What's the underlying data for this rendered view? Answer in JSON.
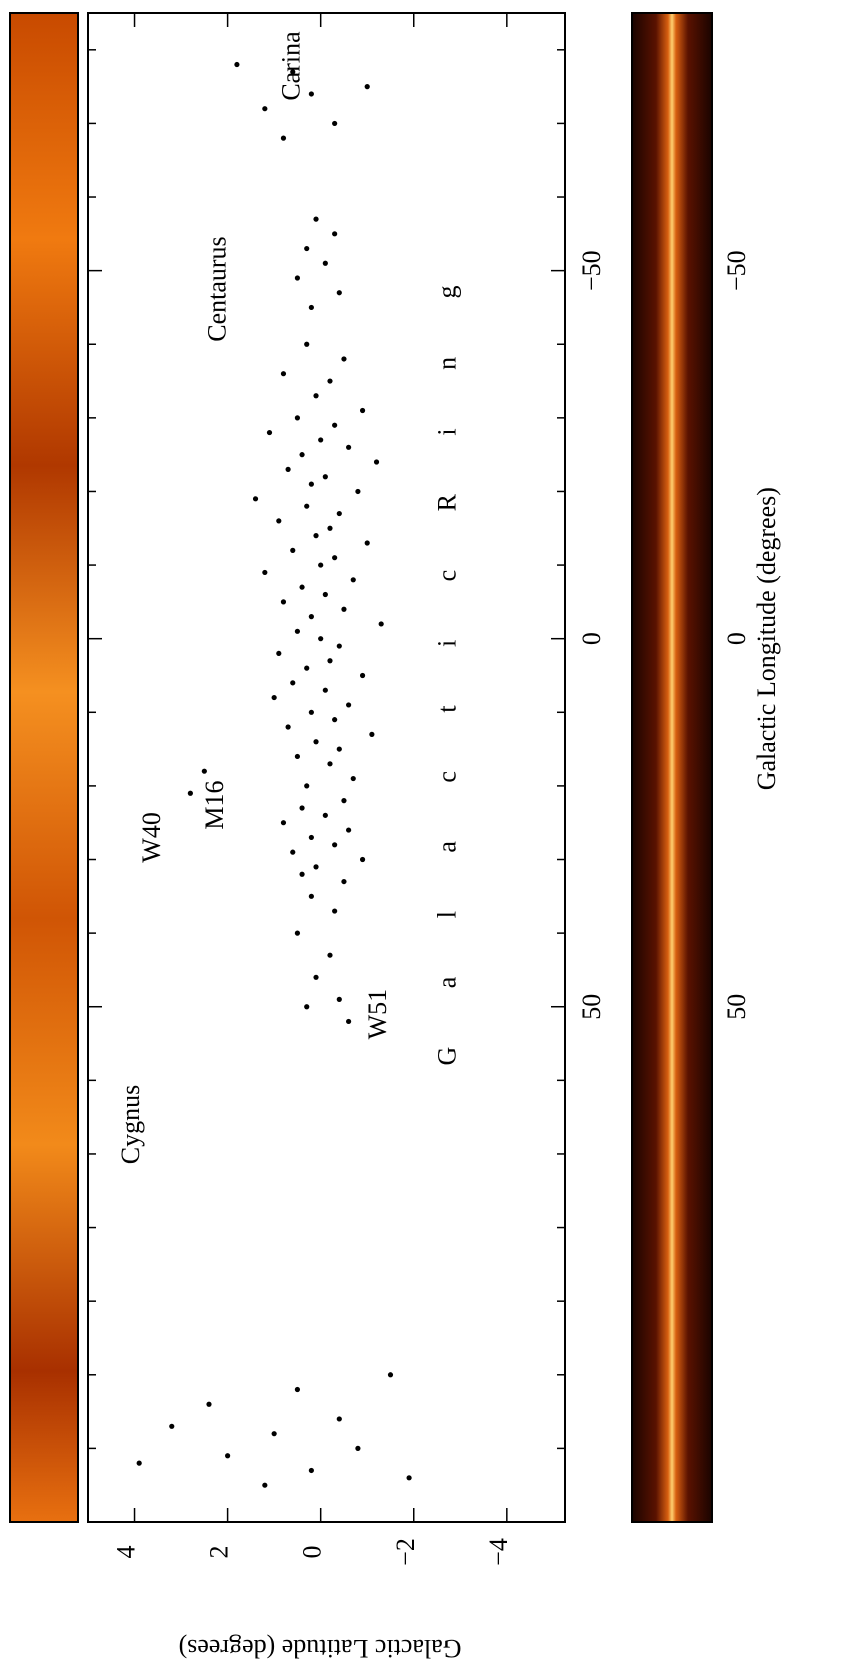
{
  "chart_data": {
    "type": "scatter",
    "xlabel": "Galactic Longitude (degrees)",
    "ylabel": "Galactic Latitude (degrees)",
    "xlim": [
      -85,
      120
    ],
    "ylim": [
      -5.25,
      5
    ],
    "xticks": [
      {
        "value": -50,
        "label": "−50"
      },
      0,
      50
    ],
    "xminor_ticks": [
      -80,
      -70,
      -60,
      -40,
      -30,
      -20,
      -10,
      10,
      20,
      30,
      40,
      60,
      70,
      80,
      90,
      100,
      110
    ],
    "yticks": [
      {
        "value": -4,
        "label": "−4"
      },
      {
        "value": -2,
        "label": "−2"
      },
      0,
      2,
      4
    ],
    "color": "#000000",
    "annotations": [
      "Cygnus",
      "W51",
      "W40",
      "M16",
      "Centaurus",
      "Carina",
      "G a l a c t i c R i n g"
    ],
    "x": [
      -40,
      -38,
      -36,
      -35,
      -33,
      -31,
      -30,
      -29,
      -28,
      -27,
      -26,
      -25,
      -24,
      -23,
      -22,
      -21,
      -20,
      -19,
      -18,
      -17,
      -16,
      -15,
      -14,
      -13,
      -12,
      -11,
      -10,
      -9,
      -8,
      -7,
      -6,
      -5,
      -4,
      -3,
      -2,
      -1,
      0,
      1,
      2,
      3,
      4,
      5,
      6,
      7,
      8,
      9,
      10,
      11,
      12,
      13,
      14,
      15,
      16,
      17,
      18,
      19,
      20,
      21,
      22,
      23,
      24,
      25,
      26,
      27,
      28,
      29,
      30,
      31,
      32,
      33,
      35,
      37,
      40,
      43,
      46,
      49,
      50,
      52,
      -45,
      -47,
      -49,
      -51,
      -53,
      -55,
      -57,
      -68,
      -70,
      -72,
      -74,
      -75,
      -77,
      -78,
      100,
      102,
      104,
      106,
      107,
      108,
      110,
      111,
      112,
      113,
      114,
      115
    ],
    "values": [
      0.3,
      -0.5,
      0.8,
      -0.2,
      0.1,
      -0.9,
      0.5,
      -0.3,
      1.1,
      0,
      -0.6,
      0.4,
      -1.2,
      0.7,
      -0.1,
      0.2,
      -0.8,
      1.4,
      0.3,
      -0.4,
      0.9,
      -0.2,
      0.1,
      -1.0,
      0.6,
      -0.3,
      0,
      1.2,
      -0.7,
      0.4,
      -0.1,
      0.8,
      -0.5,
      0.2,
      -1.3,
      0.5,
      0,
      -0.4,
      0.9,
      -0.2,
      0.3,
      -0.9,
      0.6,
      -0.1,
      1.0,
      -0.6,
      0.2,
      -0.3,
      0.7,
      -1.1,
      0.1,
      -0.4,
      0.5,
      -0.2,
      2.5,
      -0.7,
      0.3,
      2.8,
      -0.5,
      0.4,
      -0.1,
      0.8,
      -0.6,
      0.2,
      -0.3,
      0.6,
      -0.9,
      0.1,
      0.4,
      -0.5,
      0.2,
      -0.3,
      0.5,
      -0.2,
      0.1,
      -0.4,
      0.3,
      -0.6,
      0.2,
      -0.4,
      0.5,
      -0.1,
      0.3,
      -0.3,
      0.1,
      0.8,
      -0.3,
      1.2,
      0.2,
      -1.0,
      0.6,
      1.8,
      -1.5,
      0.5,
      2.4,
      -0.4,
      3.2,
      1.0,
      -0.8,
      2.0,
      3.9,
      0.2,
      -1.9,
      1.2
    ]
  }
}
